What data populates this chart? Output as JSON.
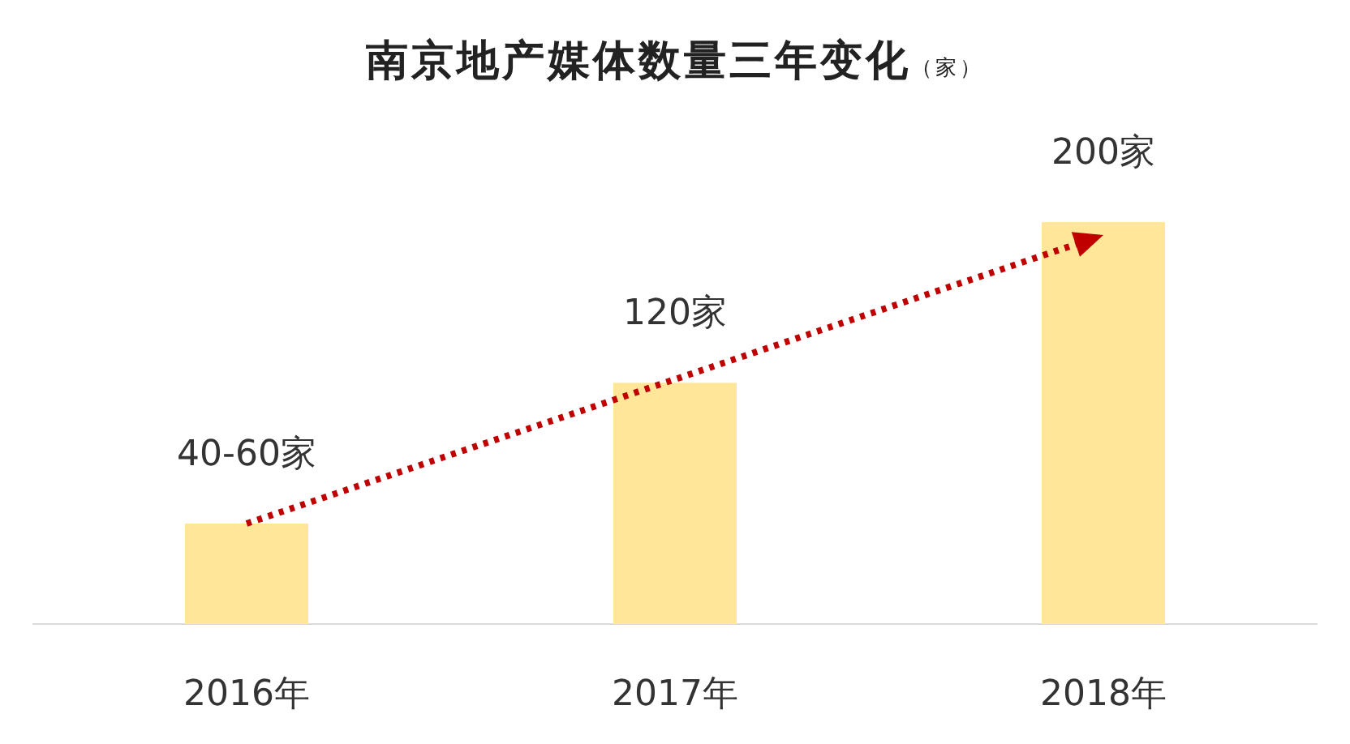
{
  "chart_data": {
    "type": "bar",
    "title": "南京地产媒体数量三年变化",
    "subtitle": "（家）",
    "categories": [
      "2016年",
      "2017年",
      "2018年"
    ],
    "values": [
      50,
      120,
      200
    ],
    "value_labels": [
      "40-60家",
      "120家",
      "200家"
    ],
    "color": "#ffe699"
  }
}
